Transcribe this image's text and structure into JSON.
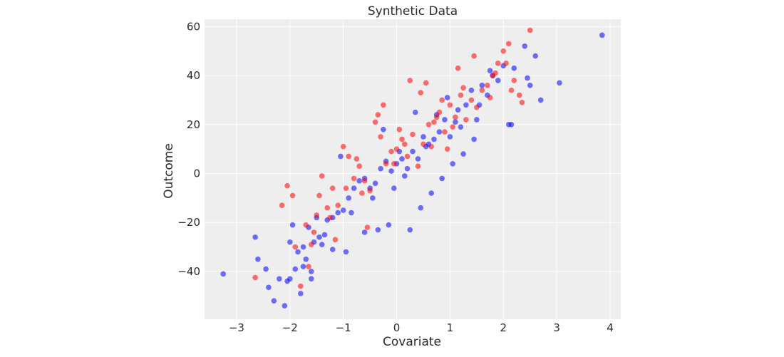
{
  "chart_data": {
    "type": "scatter",
    "title": "Synthetic Data",
    "xlabel": "Covariate",
    "ylabel": "Outcome",
    "xlim": [
      -3.6,
      4.2
    ],
    "ylim": [
      -59.5,
      63
    ],
    "xticks": [
      -3,
      -2,
      -1,
      0,
      1,
      2,
      3,
      4
    ],
    "yticks": [
      -40,
      -20,
      0,
      20,
      40,
      60
    ],
    "xtick_labels": [
      "−3",
      "−2",
      "−1",
      "0",
      "1",
      "2",
      "3",
      "4"
    ],
    "ytick_labels": [
      "−40",
      "−20",
      "0",
      "20",
      "40",
      "60"
    ],
    "grid": true,
    "background_color": "#eeeeee",
    "grid_color": "#ffffff",
    "series": [
      {
        "color": "#0000ff",
        "marker_alpha": 0.55,
        "points_sampled": true,
        "x": [
          -3.25,
          -2.65,
          -2.6,
          -2.45,
          -2.4,
          -2.3,
          -2.2,
          -2.1,
          -2.05,
          -2.0,
          -2.0,
          -1.95,
          -1.9,
          -1.85,
          -1.8,
          -1.75,
          -1.7,
          -1.65,
          -1.6,
          -1.55,
          -1.5,
          -1.45,
          -1.4,
          -1.3,
          -1.2,
          -1.1,
          -1.0,
          -0.9,
          -0.8,
          -0.7,
          -0.6,
          -0.5,
          -0.4,
          -0.3,
          -0.2,
          -0.1,
          0.0,
          0.1,
          0.2,
          0.3,
          0.4,
          0.5,
          0.6,
          0.7,
          0.8,
          0.9,
          1.0,
          1.1,
          1.2,
          1.3,
          1.4,
          1.5,
          1.6,
          1.7,
          1.8,
          1.9,
          2.0,
          2.1,
          2.15,
          2.2,
          2.4,
          2.5,
          2.6,
          2.7,
          3.05,
          3.85,
          -1.6,
          -1.2,
          -0.95,
          -0.6,
          -0.35,
          -0.15,
          0.05,
          0.25,
          0.45,
          0.65,
          0.85,
          1.05,
          1.25,
          1.45,
          -1.35,
          -0.85,
          -0.45,
          0.15,
          0.55,
          1.15,
          1.55,
          -1.75,
          -0.25,
          0.35,
          0.95,
          1.75,
          2.45,
          -0.05,
          0.75,
          -1.05
        ],
        "y": [
          -41,
          -26,
          -35,
          -39,
          -46.5,
          -52,
          -43,
          -54,
          -44,
          -43,
          -28,
          -21,
          -39,
          -32,
          -49,
          -30,
          -35,
          -22,
          -43,
          -28,
          -18,
          -26,
          -29,
          -19,
          -18,
          -16,
          -15,
          -10,
          -6,
          -3,
          -2,
          -6,
          -4,
          2,
          5,
          1,
          4,
          6,
          2,
          9,
          6,
          15,
          12,
          14,
          17,
          22,
          15,
          21,
          19,
          28,
          34,
          22,
          36,
          32,
          40,
          38,
          44,
          20,
          20,
          43,
          52,
          36,
          48,
          30,
          37,
          56.5,
          -40,
          -31,
          -32,
          -24,
          -23,
          -21,
          9,
          -23,
          -14,
          -8,
          -2,
          4,
          8,
          14,
          -25,
          -16,
          -10,
          -1,
          11,
          26,
          28,
          -38,
          18,
          25,
          31,
          42,
          39,
          -6,
          24,
          7
        ]
      },
      {
        "color": "#ff0000",
        "marker_alpha": 0.55,
        "points_sampled": true,
        "x": [
          -2.65,
          -2.15,
          -2.05,
          -1.95,
          -1.9,
          -1.8,
          -1.7,
          -1.65,
          -1.6,
          -1.5,
          -1.45,
          -1.4,
          -1.3,
          -1.2,
          -1.1,
          -1.0,
          -0.9,
          -0.8,
          -0.7,
          -0.6,
          -0.5,
          -0.4,
          -0.3,
          -0.2,
          -0.1,
          0.0,
          0.1,
          0.2,
          0.3,
          0.4,
          0.5,
          0.6,
          0.7,
          0.8,
          0.9,
          1.0,
          1.1,
          1.2,
          1.3,
          1.4,
          1.5,
          1.6,
          1.7,
          1.8,
          1.9,
          2.0,
          2.1,
          2.2,
          2.3,
          2.5,
          -1.55,
          -1.25,
          -0.95,
          -0.65,
          -0.35,
          -0.05,
          0.25,
          0.55,
          0.85,
          1.15,
          1.45,
          1.75,
          2.05,
          -1.15,
          -0.55,
          0.05,
          0.65,
          1.25,
          1.85,
          0.15,
          0.45,
          0.75,
          1.05,
          -0.25,
          -0.75,
          0.95,
          2.15,
          2.35
        ],
        "y": [
          -42.5,
          -13,
          -5,
          -9,
          -30,
          -46,
          -21,
          -38,
          -29,
          -17,
          -9,
          -1,
          -14,
          -6,
          -13,
          11,
          7,
          -2,
          3,
          -3,
          -7,
          21,
          15,
          4,
          9,
          10,
          14,
          7,
          16,
          3,
          12,
          20,
          21,
          25,
          17,
          28,
          23,
          32,
          22,
          30,
          27,
          34,
          36,
          40,
          45,
          50,
          53,
          38,
          32,
          58.5,
          -24,
          -18,
          -6,
          -8,
          24,
          4,
          38,
          37,
          30,
          43,
          48,
          31,
          45,
          -27,
          -22,
          18,
          11,
          35,
          41,
          12,
          33,
          23,
          19,
          28,
          6,
          10,
          34,
          29
        ]
      }
    ]
  }
}
